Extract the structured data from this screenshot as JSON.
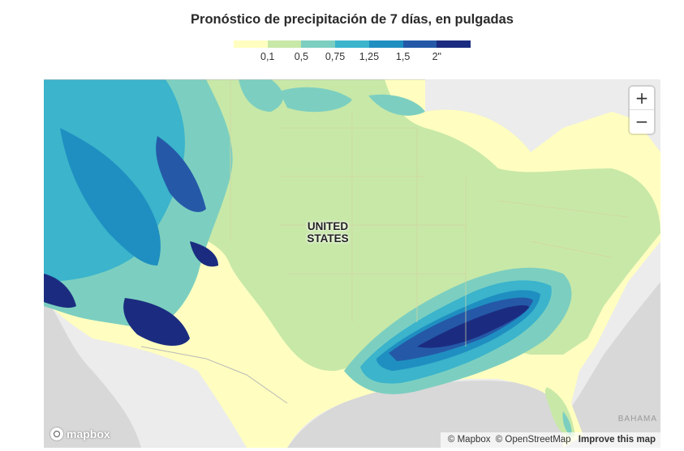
{
  "title": "Pronóstico de precipitación de 7 días, en pulgadas",
  "legend": {
    "colors": [
      "#fffec0",
      "#c8e8a8",
      "#7ccfc0",
      "#3bb4cc",
      "#1f8fc1",
      "#2559a8",
      "#1b2c80"
    ],
    "labels": [
      "0,1",
      "0,5",
      "0,75",
      "1,25",
      "1,5",
      "2\""
    ]
  },
  "map": {
    "country_label_line1": "UNITED",
    "country_label_line2": "STATES",
    "region_partial_label": "BAHAMA",
    "colors": {
      "land": "#ececec",
      "water": "#d8d8d8",
      "borders": "#b9b9b9"
    }
  },
  "controls": {
    "zoom_in": "+",
    "zoom_out": "−",
    "zoom_in_icon": "plus-icon",
    "zoom_out_icon": "minus-icon"
  },
  "branding": {
    "logo_text": "mapbox",
    "logo_icon": "mapbox-logo-icon"
  },
  "attribution": {
    "mapbox": "© Mapbox",
    "osm": "© OpenStreetMap",
    "improve": "Improve this map"
  }
}
